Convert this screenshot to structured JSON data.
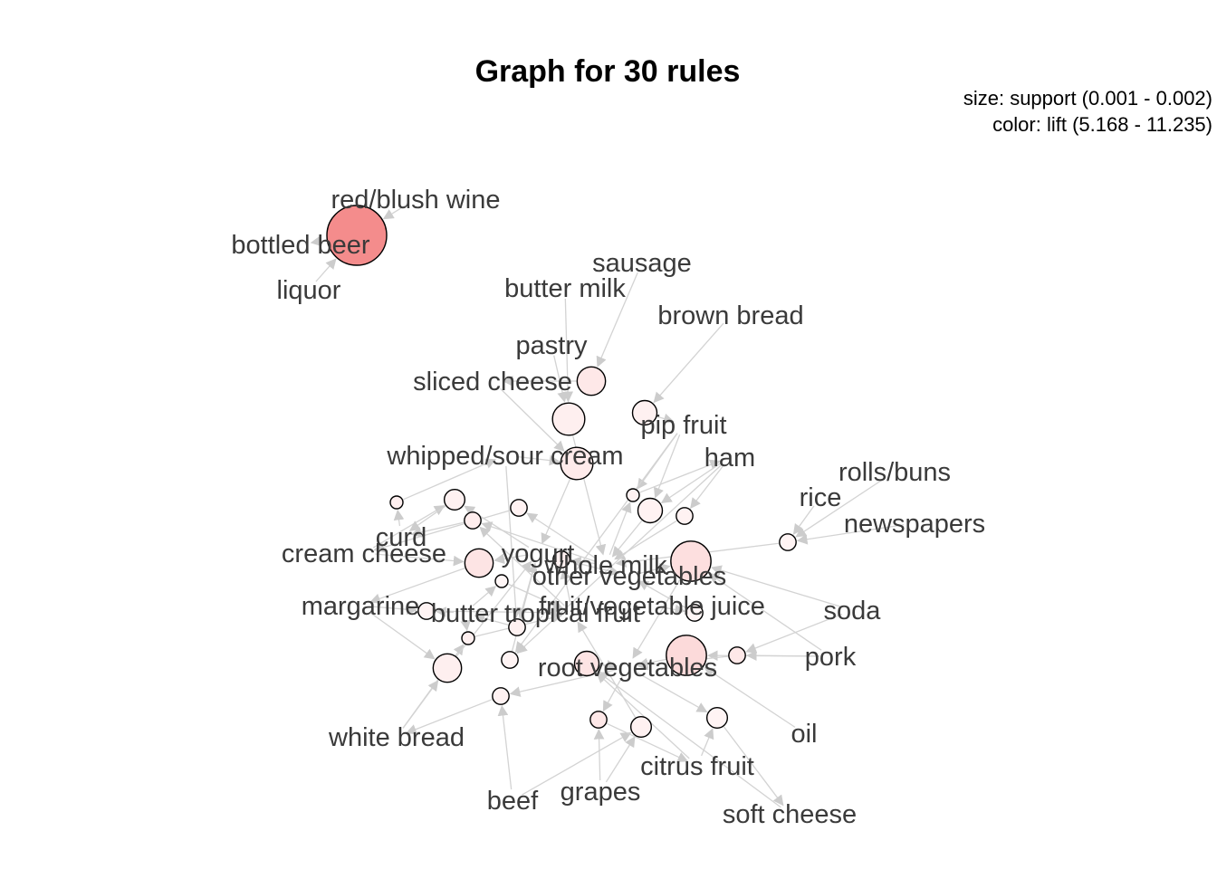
{
  "title": "Graph for 30 rules",
  "legend": {
    "size_line": "size: support (0.001 - 0.002)",
    "color_line": "color: lift (5.168 - 11.235)"
  },
  "colors": {
    "edge": "#d3d3d3",
    "label": "#3a3a3a",
    "lift_low": "#fff6f6",
    "lift_high": "#f48c8c"
  },
  "items": [
    "red/blush wine",
    "bottled beer",
    "liquor",
    "sausage",
    "butter milk",
    "brown bread",
    "pastry",
    "sliced cheese",
    "pip fruit",
    "whipped/sour cream",
    "ham",
    "rolls/buns",
    "rice",
    "newspapers",
    "curd",
    "cream cheese",
    "yogurt",
    "whole milk",
    "other vegetables",
    "margarine",
    "butter",
    "tropical fruit",
    "fruit/vegetable juice",
    "soda",
    "pork",
    "root vegetables",
    "white bread",
    "oil",
    "citrus fruit",
    "beef",
    "grapes",
    "soft cheese"
  ],
  "rules": [
    {
      "id": "r1",
      "support": 0.002,
      "lift": 11.235,
      "lhs": [
        "liquor",
        "red/blush wine"
      ],
      "rhs": "bottled beer"
    },
    {
      "id": "r2",
      "support": 0.0012,
      "lift": 6.0,
      "lhs": [
        "sausage"
      ],
      "rhs": "sliced cheese"
    },
    {
      "id": "r3",
      "support": 0.0013,
      "lift": 5.6,
      "lhs": [
        "butter milk",
        "pastry"
      ],
      "rhs": "whole milk"
    },
    {
      "id": "r4",
      "support": 0.0011,
      "lift": 5.5,
      "lhs": [
        "brown bread"
      ],
      "rhs": "pip fruit"
    },
    {
      "id": "r5",
      "support": 0.0013,
      "lift": 5.8,
      "lhs": [
        "sliced cheese",
        "whipped/sour cream"
      ],
      "rhs": "yogurt"
    },
    {
      "id": "r6",
      "support": 0.0009,
      "lift": 5.4,
      "lhs": [
        "ham"
      ],
      "rhs": "whole milk"
    },
    {
      "id": "r7",
      "support": 0.0009,
      "lift": 5.3,
      "lhs": [
        "rolls/buns",
        "rice",
        "newspapers"
      ],
      "rhs": "whole milk"
    },
    {
      "id": "r8",
      "support": 0.0008,
      "lift": 5.6,
      "lhs": [
        "curd"
      ],
      "rhs": "whipped/sour cream"
    },
    {
      "id": "r9",
      "support": 0.001,
      "lift": 5.5,
      "lhs": [
        "yogurt",
        "cream cheese"
      ],
      "rhs": "curd"
    },
    {
      "id": "r10",
      "support": 0.0009,
      "lift": 5.4,
      "lhs": [
        "whole milk"
      ],
      "rhs": "cream cheese"
    },
    {
      "id": "r11",
      "support": 0.0015,
      "lift": 6.5,
      "lhs": [
        "other vegetables",
        "soda",
        "pork"
      ],
      "rhs": "root vegetables"
    },
    {
      "id": "r12",
      "support": 0.0012,
      "lift": 6.2,
      "lhs": [
        "cream cheese",
        "yogurt"
      ],
      "rhs": "margarine"
    },
    {
      "id": "r13",
      "support": 0.0008,
      "lift": 5.2,
      "lhs": [
        "butter"
      ],
      "rhs": "tropical fruit"
    },
    {
      "id": "r14",
      "support": 0.0009,
      "lift": 5.3,
      "lhs": [
        "margarine",
        "butter"
      ],
      "rhs": "tropical fruit"
    },
    {
      "id": "r15",
      "support": 0.0015,
      "lift": 6.8,
      "lhs": [
        "oil",
        "pork"
      ],
      "rhs": "root vegetables"
    },
    {
      "id": "r16",
      "support": 0.0009,
      "lift": 5.2,
      "lhs": [
        "fruit/vegetable juice"
      ],
      "rhs": "other vegetables"
    },
    {
      "id": "r17",
      "support": 0.0009,
      "lift": 6.0,
      "lhs": [
        "soda",
        "pork"
      ],
      "rhs": "root vegetables"
    },
    {
      "id": "r18",
      "support": 0.001,
      "lift": 5.3,
      "lhs": [
        "root vegetables",
        "citrus fruit"
      ],
      "rhs": "soft cheese"
    },
    {
      "id": "r19",
      "support": 0.001,
      "lift": 5.5,
      "lhs": [
        "beef",
        "grapes"
      ],
      "rhs": "tropical fruit"
    },
    {
      "id": "r20",
      "support": 0.0009,
      "lift": 6.0,
      "lhs": [
        "grapes",
        "root vegetables"
      ],
      "rhs": "citrus fruit"
    },
    {
      "id": "r21",
      "support": 0.0011,
      "lift": 6.2,
      "lhs": [
        "citrus fruit",
        "soft cheese"
      ],
      "rhs": "root vegetables"
    },
    {
      "id": "r22",
      "support": 0.0009,
      "lift": 5.4,
      "lhs": [
        "beef",
        "root vegetables"
      ],
      "rhs": "white bread"
    },
    {
      "id": "r23",
      "support": 0.0008,
      "lift": 5.6,
      "lhs": [
        "white bread",
        "butter"
      ],
      "rhs": "tropical fruit"
    },
    {
      "id": "r24",
      "support": 0.0012,
      "lift": 5.6,
      "lhs": [
        "white bread",
        "margarine"
      ],
      "rhs": "yogurt"
    },
    {
      "id": "r25",
      "support": 0.0009,
      "lift": 5.7,
      "lhs": [
        "tropical fruit",
        "whole milk"
      ],
      "rhs": "curd"
    },
    {
      "id": "r26",
      "support": 0.0009,
      "lift": 5.5,
      "lhs": [
        "whipped/sour cream",
        "yogurt"
      ],
      "rhs": "butter"
    },
    {
      "id": "r27",
      "support": 0.0008,
      "lift": 5.5,
      "lhs": [
        "pip fruit",
        "whole milk"
      ],
      "rhs": "ham"
    },
    {
      "id": "r28",
      "support": 0.0009,
      "lift": 5.3,
      "lhs": [
        "pip fruit",
        "ham"
      ],
      "rhs": "yogurt"
    },
    {
      "id": "r29",
      "support": 0.0009,
      "lift": 5.5,
      "lhs": [
        "tropical fruit",
        "whole milk"
      ],
      "rhs": "other vegetables"
    },
    {
      "id": "r30",
      "support": 0.0011,
      "lift": 5.4,
      "lhs": [
        "ham",
        "pip fruit"
      ],
      "rhs": "whole milk"
    }
  ]
}
